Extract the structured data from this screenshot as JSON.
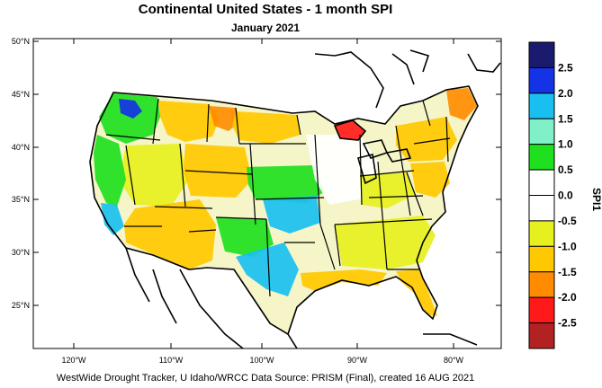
{
  "title": "Continental United States - 1 month SPI",
  "subtitle": "January 2021",
  "footer": "WestWide Drought Tracker, U Idaho/WRCC Data Source: PRISM (Final), created 16 AUG 2021",
  "axes": {
    "lat_ticks": [
      "50°N",
      "45°N",
      "40°N",
      "35°N",
      "30°N",
      "25°N"
    ],
    "lon_ticks": [
      "120°W",
      "110°W",
      "100°W",
      "90°W",
      "80°W"
    ]
  },
  "colorbar": {
    "title": "SPI1",
    "labels": [
      "2.5",
      "2.0",
      "1.5",
      "1.0",
      "0.5",
      "0.0",
      "-0.5",
      "-1.0",
      "-1.5",
      "-2.0",
      "-2.5"
    ],
    "colors": [
      "#1a1a6e",
      "#1433e6",
      "#19bff0",
      "#7ff0c8",
      "#1fe01f",
      "#ffffff",
      "#ffffff",
      "#e6f01e",
      "#ffc800",
      "#ff8c00",
      "#ff1a1a",
      "#b22222"
    ]
  },
  "regions": [
    {
      "name": "pacific-northwest",
      "color": "#1fe01f"
    },
    {
      "name": "olympic-wet-spot",
      "color": "#1433e6"
    },
    {
      "name": "northern-rockies-dry",
      "color": "#ffc800"
    },
    {
      "name": "montana-plains-dry",
      "color": "#ff8c00"
    },
    {
      "name": "north-dakota-dry",
      "color": "#ffc800"
    },
    {
      "name": "great-basin-mixed",
      "color": "#e6f01e"
    },
    {
      "name": "california-wet",
      "color": "#1fe01f"
    },
    {
      "name": "southern-california-wet",
      "color": "#19bff0"
    },
    {
      "name": "southwest-dry",
      "color": "#ffc800"
    },
    {
      "name": "colorado-dry",
      "color": "#ffc800"
    },
    {
      "name": "kansas-wet",
      "color": "#1fe01f"
    },
    {
      "name": "oklahoma-wet",
      "color": "#19bff0"
    },
    {
      "name": "texas-panhandle-wet",
      "color": "#1fe01f"
    },
    {
      "name": "south-texas-wet",
      "color": "#19bff0"
    },
    {
      "name": "gulf-coast-dry",
      "color": "#ffc800"
    },
    {
      "name": "florida-dry",
      "color": "#ffc800"
    },
    {
      "name": "southeast-mixed",
      "color": "#e6f01e"
    },
    {
      "name": "midwest-neutral",
      "color": "#ffffff"
    },
    {
      "name": "michigan-dry",
      "color": "#ff1a1a"
    },
    {
      "name": "ohio-valley-mixed",
      "color": "#e6f01e"
    },
    {
      "name": "northeast-dry",
      "color": "#ffc800"
    },
    {
      "name": "maine-dry",
      "color": "#ff8c00"
    },
    {
      "name": "mid-atlantic-dry",
      "color": "#ffc800"
    }
  ]
}
